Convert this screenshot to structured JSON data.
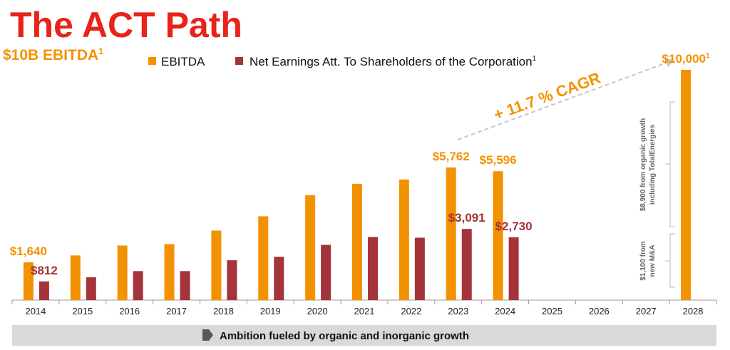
{
  "chart_data": {
    "type": "bar",
    "title": "The ACT Path",
    "subtitle": "$10B EBITDA",
    "subtitle_note": "1",
    "categories": [
      "2014",
      "2015",
      "2016",
      "2017",
      "2018",
      "2019",
      "2020",
      "2021",
      "2022",
      "2023",
      "2024",
      "2025",
      "2026",
      "2027",
      "2028"
    ],
    "series": [
      {
        "name": "EBITDA",
        "color": "#f39200",
        "values": [
          1640,
          1940,
          2370,
          2430,
          3020,
          3640,
          4560,
          5050,
          5240,
          5762,
          5596,
          null,
          null,
          null,
          10000
        ],
        "value_labels": [
          "$1,640",
          null,
          null,
          null,
          null,
          null,
          null,
          null,
          null,
          "$5,762",
          "$5,596",
          null,
          null,
          null,
          "$10,000"
        ],
        "label_notes": [
          null,
          null,
          null,
          null,
          null,
          null,
          null,
          null,
          null,
          null,
          null,
          null,
          null,
          null,
          "1"
        ]
      },
      {
        "name": "Net Earnings Att. To Shareholders of the Corporation",
        "name_note": "1",
        "color": "#a4343a",
        "values": [
          812,
          990,
          1260,
          1260,
          1730,
          1880,
          2400,
          2740,
          2710,
          3091,
          2730,
          null,
          null,
          null,
          null
        ],
        "value_labels": [
          "$812",
          null,
          null,
          null,
          null,
          null,
          null,
          null,
          null,
          "$3,091",
          "$2,730",
          null,
          null,
          null,
          null
        ]
      }
    ],
    "ylim": [
      0,
      10000
    ],
    "cagr": "+ 11.7 % CAGR",
    "bracket_labels": [
      [
        "$8,900 from organic growth",
        "including TotalEnergies"
      ],
      [
        "$1,100 from",
        "new M&A"
      ]
    ],
    "banner": "Ambition fueled by organic and inorganic growth"
  }
}
